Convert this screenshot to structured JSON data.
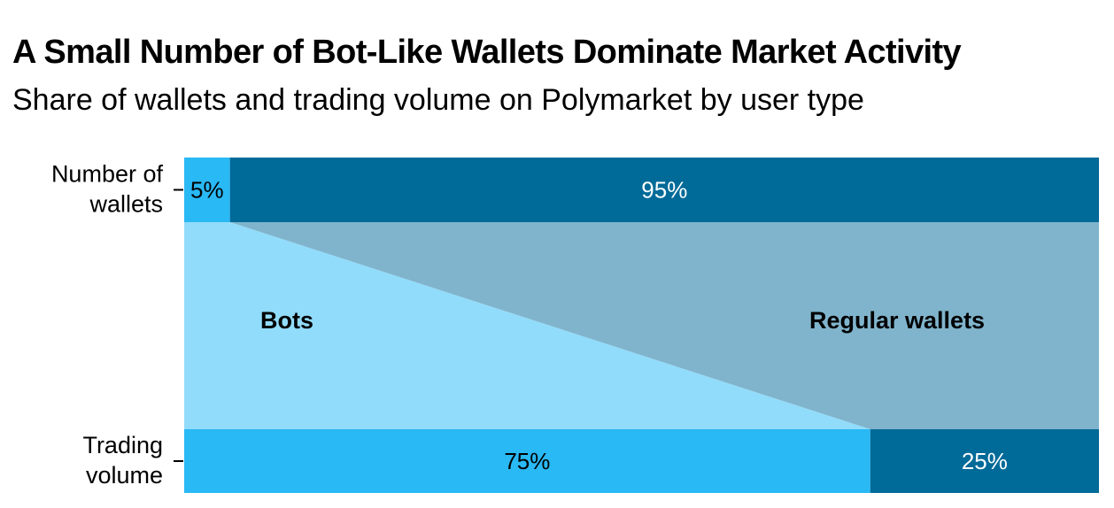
{
  "title": "A Small Number of Bot-Like Wallets Dominate Market Activity",
  "subtitle": "Share of wallets and trading volume on Polymarket by user type",
  "chart_data": {
    "type": "bar",
    "orientation": "horizontal-stacked-100",
    "categories": [
      "Number of wallets",
      "Trading volume"
    ],
    "category_lines": [
      [
        "Number of",
        "wallets"
      ],
      [
        "Trading",
        "volume"
      ]
    ],
    "series": [
      {
        "name": "Bots",
        "values": [
          5,
          75
        ],
        "labels": [
          "5%",
          "75%"
        ],
        "color": "#29b9f5",
        "band_color": "#92dcfb",
        "label_color": "#000000"
      },
      {
        "name": "Regular wallets",
        "values": [
          95,
          25
        ],
        "labels": [
          "95%",
          "25%"
        ],
        "color": "#006a98",
        "band_color": "#80b4cc",
        "label_color": "#ffffff"
      }
    ],
    "xlim": [
      0,
      100
    ],
    "unit": "%"
  }
}
